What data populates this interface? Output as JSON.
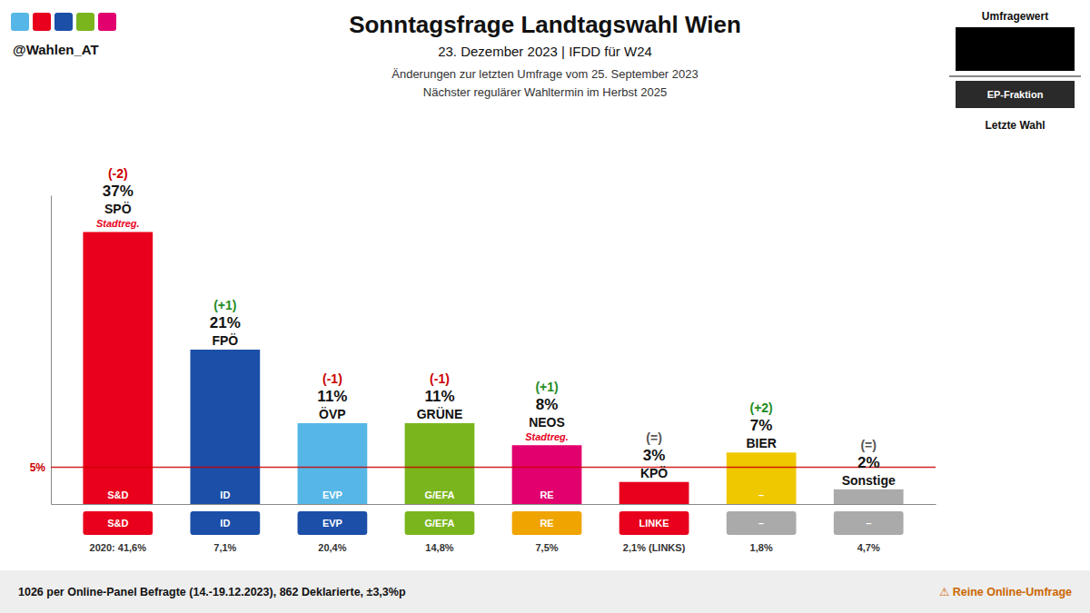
{
  "chart_data": {
    "type": "bar",
    "title": "Sonntagsfrage Landtagswahl Wien",
    "subtitle": [
      "23. Dezember 2023 | IFDD für W24",
      "Änderungen zur letzten Umfrage vom 25. September 2023",
      "Nächster regulärer Wahltermin im Herbst 2025"
    ],
    "handle": "@Wahlen_AT",
    "handle_colors": [
      "#56b7e6",
      "#e8001c",
      "#1b4fa8",
      "#7ab51d",
      "#e1006e"
    ],
    "categories": [
      "SPÖ",
      "FPÖ",
      "ÖVP",
      "GRÜNE",
      "NEOS",
      "KPÖ",
      "BIER",
      "Sonstige"
    ],
    "values": [
      37,
      21,
      11,
      11,
      8,
      3,
      7,
      2
    ],
    "value_labels": [
      "37%",
      "21%",
      "11%",
      "11%",
      "8%",
      "3%",
      "7%",
      "2%"
    ],
    "data_labels": true,
    "colors": [
      "#e8001c",
      "#1b4fa8",
      "#56b7e6",
      "#7ab51d",
      "#e1006e",
      "#e8001c",
      "#f0c800",
      "#aaaaaa"
    ],
    "change_labels": [
      "(-2)",
      "(+1)",
      "(-1)",
      "(-1)",
      "(+1)",
      "(=)",
      "(+2)",
      "(=)"
    ],
    "change_colors": [
      "#cc0000",
      "#228B22",
      "#cc0000",
      "#cc0000",
      "#228B22",
      "#555555",
      "#228B22",
      "#555555"
    ],
    "gov_labels": [
      "Stadtreg.",
      null,
      null,
      null,
      "Stadtreg.",
      null,
      null,
      null
    ],
    "gov_label_colors": [
      "#e8001c",
      null,
      null,
      null,
      "#e8001c",
      null,
      null,
      null
    ],
    "ep_labels": [
      "S&D",
      "ID",
      "EVP",
      "G/EFA",
      "RE",
      "LINKE",
      "–",
      "–"
    ],
    "ep_colors": [
      "#e8001c",
      "#1b4fa8",
      "#1b4fa8",
      "#7ab51d",
      "#f0a400",
      "#e8001c",
      "#aaaaaa",
      "#aaaaaa"
    ],
    "last_labels": [
      "2020: 41,6%",
      "7,1%",
      "20,4%",
      "14,8%",
      "7,5%",
      "2,1% (LINKS)",
      "1,8%",
      "4,7%"
    ],
    "threshold": 5,
    "threshold_label": "5%",
    "ylim": [
      0,
      42
    ],
    "tick_labels": false,
    "legend": "upper right",
    "legend_labels": [
      "Umfragewert",
      "EP-Fraktion",
      "Letzte Wahl"
    ],
    "footer": "1026 per Online-Panel Befragte (14.-19.12.2023), 862 Deklarierte, ±3,3%p",
    "footer_right": "⚠ Reine Online-Umfrage"
  }
}
